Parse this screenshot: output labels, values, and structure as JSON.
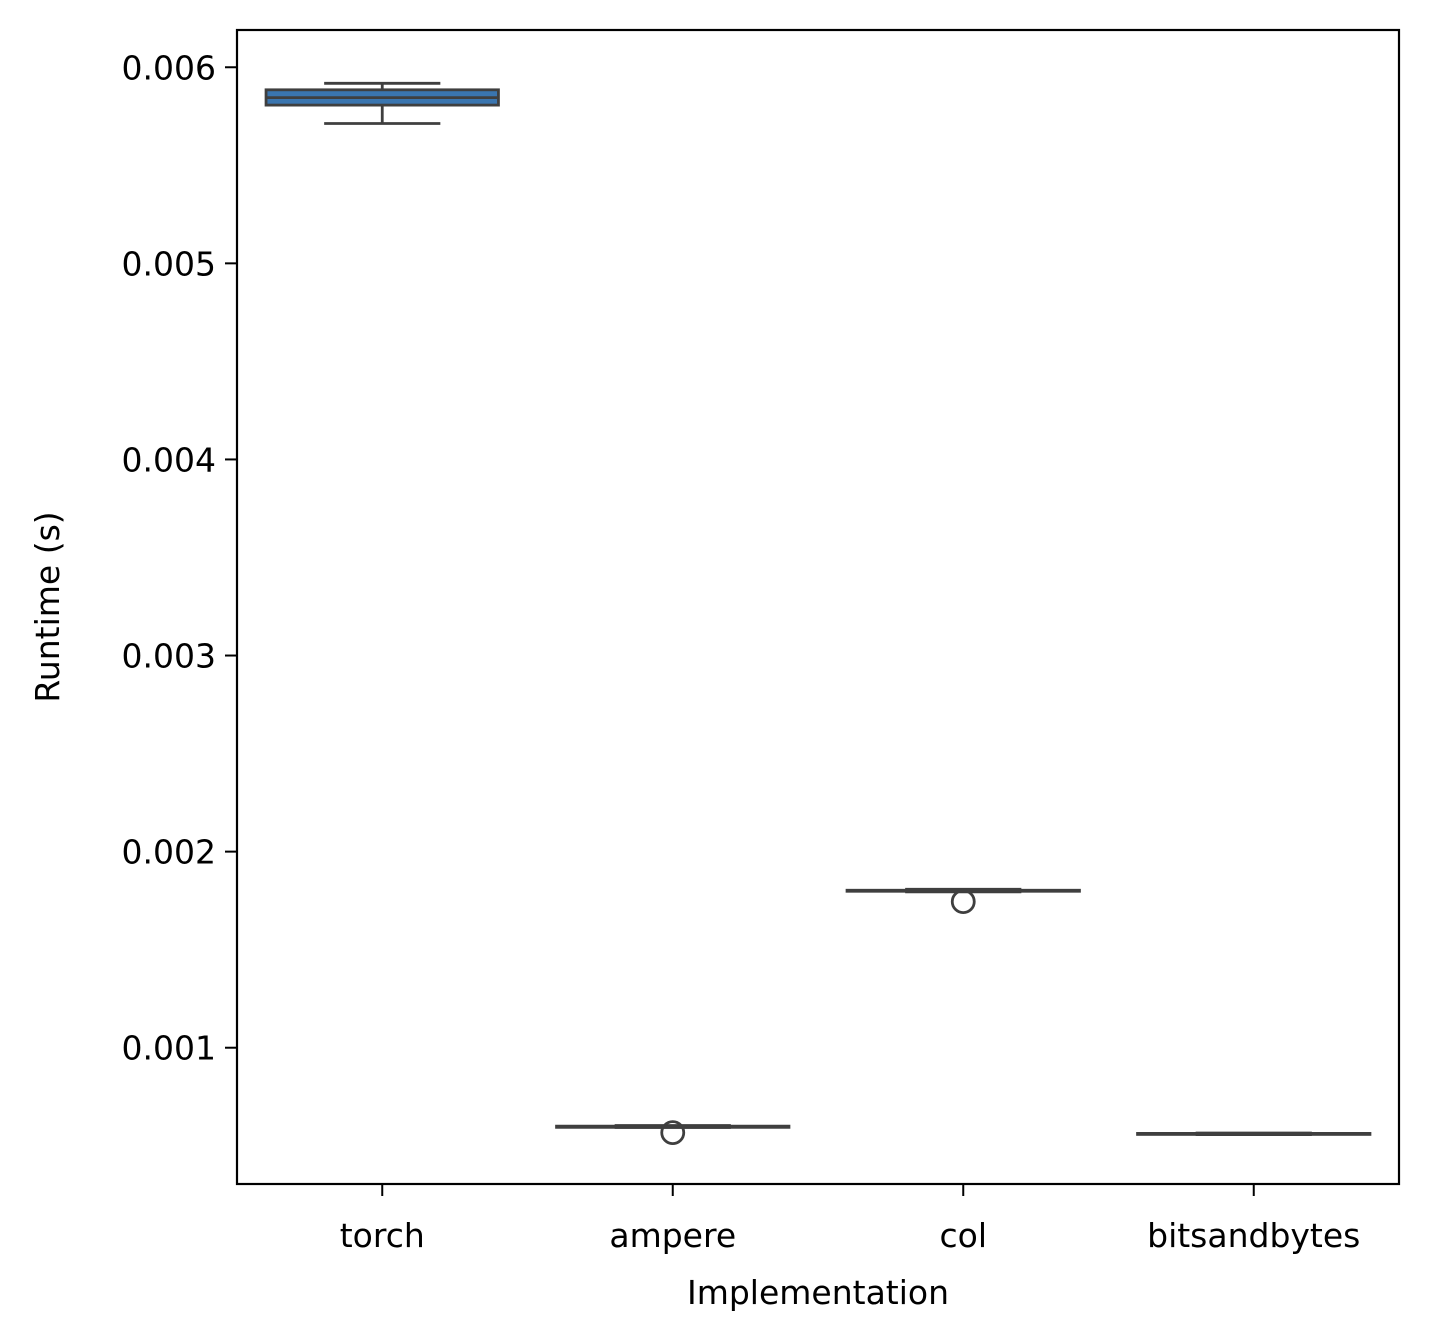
{
  "chart_data": {
    "type": "box",
    "title": "",
    "xlabel": "Implementation",
    "ylabel": "Runtime (s)",
    "categories": [
      "torch",
      "ampere",
      "col",
      "bitsandbytes"
    ],
    "yticks": [
      0.001,
      0.002,
      0.003,
      0.004,
      0.005,
      0.006
    ],
    "ytick_labels": [
      "0.001",
      "0.002",
      "0.003",
      "0.004",
      "0.005",
      "0.006"
    ],
    "ylim": [
      0.000305,
      0.00619
    ],
    "grid": false,
    "legend": "none",
    "box_color": "#3a75af",
    "line_color": "#3f3f3f",
    "boxes": [
      {
        "category": "torch",
        "whisker_low": 0.005713,
        "q1": 0.005807,
        "median": 0.005845,
        "q3": 0.005885,
        "whisker_high": 0.005918,
        "outliers": []
      },
      {
        "category": "ampere",
        "whisker_low": 0.000593,
        "q1": 0.000594,
        "median": 0.000597,
        "q3": 0.0006,
        "whisker_high": 0.000603,
        "outliers": [
          0.000567
        ]
      },
      {
        "category": "col",
        "whisker_low": 0.001795,
        "q1": 0.001798,
        "median": 0.0018,
        "q3": 0.001803,
        "whisker_high": 0.001808,
        "outliers": [
          0.001745
        ]
      },
      {
        "category": "bitsandbytes",
        "whisker_low": 0.000557,
        "q1": 0.000559,
        "median": 0.000561,
        "q3": 0.000563,
        "whisker_high": 0.000565,
        "outliers": []
      }
    ]
  }
}
